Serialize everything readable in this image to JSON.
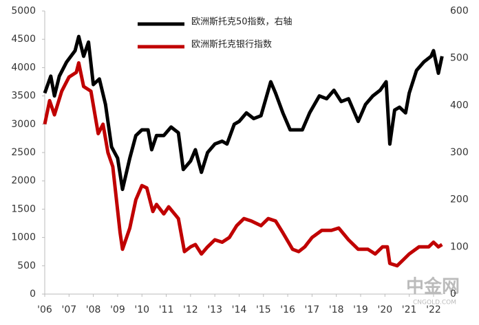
{
  "chart_data": {
    "type": "line",
    "xlim": [
      2006,
      2022.37
    ],
    "xticks": [
      {
        "value": 2006,
        "label": "'06"
      },
      {
        "value": 2007,
        "label": "'07"
      },
      {
        "value": 2008,
        "label": "'08"
      },
      {
        "value": 2009,
        "label": "'09"
      },
      {
        "value": 2010,
        "label": "'10"
      },
      {
        "value": 2011,
        "label": "'11"
      },
      {
        "value": 2012,
        "label": "'12"
      },
      {
        "value": 2013,
        "label": "'13"
      },
      {
        "value": 2014,
        "label": "'14"
      },
      {
        "value": 2015,
        "label": "'15"
      },
      {
        "value": 2016,
        "label": "'16"
      },
      {
        "value": 2017,
        "label": "'17"
      },
      {
        "value": 2018,
        "label": "'18"
      },
      {
        "value": 2019,
        "label": "'19"
      },
      {
        "value": 2020,
        "label": "'20"
      },
      {
        "value": 2021,
        "label": "'21"
      },
      {
        "value": 2022,
        "label": "'22"
      }
    ],
    "ylim": [
      0,
      5000
    ],
    "yticks": [
      0,
      500,
      1000,
      1500,
      2000,
      2500,
      3000,
      3500,
      4000,
      4500,
      5000
    ],
    "y2lim": [
      0,
      600
    ],
    "y2ticks": [
      0,
      100,
      200,
      300,
      400,
      500,
      600
    ],
    "series": [
      {
        "name": "欧洲斯托克50指数，右轴",
        "color": "#000000",
        "x": [
          2006.0,
          2006.25,
          2006.4,
          2006.6,
          2006.9,
          2007.25,
          2007.4,
          2007.6,
          2007.8,
          2008.0,
          2008.25,
          2008.5,
          2008.75,
          2009.0,
          2009.2,
          2009.5,
          2009.75,
          2010.0,
          2010.25,
          2010.4,
          2010.6,
          2010.9,
          2011.2,
          2011.5,
          2011.7,
          2012.0,
          2012.2,
          2012.45,
          2012.7,
          2013.0,
          2013.3,
          2013.5,
          2013.8,
          2014.0,
          2014.3,
          2014.6,
          2014.9,
          2015.3,
          2015.5,
          2015.8,
          2016.1,
          2016.4,
          2016.6,
          2016.9,
          2017.3,
          2017.6,
          2017.9,
          2018.2,
          2018.5,
          2018.9,
          2019.2,
          2019.5,
          2019.8,
          2020.05,
          2020.2,
          2020.4,
          2020.6,
          2020.85,
          2021.0,
          2021.3,
          2021.6,
          2021.9,
          2022.0,
          2022.2,
          2022.35
        ],
        "values": [
          3550,
          3850,
          3500,
          3850,
          4100,
          4300,
          4550,
          4200,
          4450,
          3700,
          3800,
          3350,
          2600,
          2400,
          1850,
          2400,
          2800,
          2900,
          2900,
          2550,
          2800,
          2800,
          2950,
          2850,
          2200,
          2350,
          2550,
          2150,
          2500,
          2650,
          2700,
          2650,
          3000,
          3050,
          3200,
          3100,
          3150,
          3750,
          3550,
          3200,
          2900,
          2900,
          2900,
          3200,
          3500,
          3450,
          3600,
          3400,
          3450,
          3050,
          3350,
          3500,
          3600,
          3750,
          2650,
          3250,
          3300,
          3200,
          3550,
          3950,
          4100,
          4200,
          4300,
          3900,
          4200
        ]
      },
      {
        "name": "欧洲斯托克银行指数",
        "color": "#c00000",
        "axis": "y2",
        "x": [
          2006.0,
          2006.2,
          2006.4,
          2006.7,
          2007.0,
          2007.3,
          2007.4,
          2007.6,
          2007.9,
          2008.2,
          2008.4,
          2008.6,
          2008.8,
          2009.1,
          2009.2,
          2009.5,
          2009.75,
          2010.0,
          2010.2,
          2010.45,
          2010.6,
          2010.9,
          2011.1,
          2011.5,
          2011.75,
          2012.0,
          2012.2,
          2012.45,
          2012.7,
          2013.0,
          2013.3,
          2013.6,
          2013.9,
          2014.2,
          2014.5,
          2014.9,
          2015.2,
          2015.5,
          2015.8,
          2016.2,
          2016.45,
          2016.7,
          2017.0,
          2017.4,
          2017.8,
          2018.1,
          2018.5,
          2018.9,
          2019.3,
          2019.6,
          2019.9,
          2020.1,
          2020.2,
          2020.5,
          2020.8,
          2021.0,
          2021.4,
          2021.8,
          2022.0,
          2022.2,
          2022.35
        ],
        "values": [
          360,
          410,
          380,
          430,
          460,
          470,
          490,
          440,
          430,
          340,
          360,
          300,
          270,
          130,
          95,
          140,
          200,
          230,
          225,
          175,
          190,
          170,
          185,
          160,
          90,
          100,
          105,
          85,
          100,
          115,
          110,
          120,
          145,
          160,
          155,
          145,
          160,
          155,
          130,
          95,
          90,
          100,
          120,
          135,
          135,
          140,
          115,
          95,
          95,
          85,
          100,
          100,
          65,
          60,
          75,
          85,
          100,
          100,
          110,
          100,
          105
        ]
      }
    ],
    "watermark": "中金网",
    "watermark_url": "CNGOLD.COM"
  }
}
